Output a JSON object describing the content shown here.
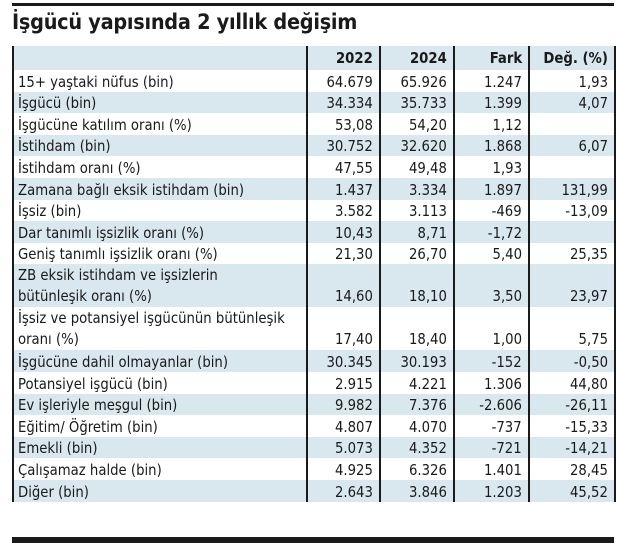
{
  "title": "İşgücü yapısında 2 yıllık değişim",
  "colors": {
    "row_alt": "#d9e7ef",
    "border": "#1a1a1a",
    "text": "#1a1a1a"
  },
  "table": {
    "headers": [
      "",
      "2022",
      "2024",
      "Fark",
      "Değ. (%)"
    ],
    "rows": [
      {
        "label": "15+ yaştaki nüfus (bin)",
        "y2022": "64.679",
        "y2024": "65.926",
        "fark": "1.247",
        "deg": "1,93"
      },
      {
        "label": "İşgücü (bin)",
        "y2022": "34.334",
        "y2024": "35.733",
        "fark": "1.399",
        "deg": "4,07"
      },
      {
        "label": "İşgücüne katılım oranı (%)",
        "y2022": "53,08",
        "y2024": "54,20",
        "fark": "1,12",
        "deg": ""
      },
      {
        "label": "İstihdam (bin)",
        "y2022": "30.752",
        "y2024": "32.620",
        "fark": "1.868",
        "deg": "6,07"
      },
      {
        "label": "İstihdam oranı (%)",
        "y2022": "47,55",
        "y2024": "49,48",
        "fark": "1,93",
        "deg": ""
      },
      {
        "label": "Zamana bağlı eksik istihdam  (bin)",
        "y2022": "1.437",
        "y2024": "3.334",
        "fark": "1.897",
        "deg": "131,99"
      },
      {
        "label": "İşsiz (bin)",
        "y2022": "3.582",
        "y2024": "3.113",
        "fark": "-469",
        "deg": "-13,09"
      },
      {
        "label": "Dar tanımlı işsizlik oranı (%)",
        "y2022": "10,43",
        "y2024": "8,71",
        "fark": "-1,72",
        "deg": ""
      },
      {
        "label": "Geniş tanımlı işsizlik oranı (%)",
        "y2022": "21,30",
        "y2024": "26,70",
        "fark": "5,40",
        "deg": "25,35"
      },
      {
        "label": "ZB eksik istihdam ve işsizlerin bütünleşik oranı (%)",
        "y2022": "14,60",
        "y2024": "18,10",
        "fark": "3,50",
        "deg": "23,97"
      },
      {
        "label": "İşsiz ve potansiyel işgücünün bütünleşik oranı (%)",
        "y2022": "17,40",
        "y2024": "18,40",
        "fark": "1,00",
        "deg": "5,75"
      },
      {
        "label": "İşgücüne dahil olmayanlar (bin)",
        "y2022": "30.345",
        "y2024": "30.193",
        "fark": "-152",
        "deg": "-0,50"
      },
      {
        "label": "Potansiyel işgücü (bin)",
        "y2022": "2.915",
        "y2024": "4.221",
        "fark": "1.306",
        "deg": "44,80"
      },
      {
        "label": "Ev işleriyle meşgul (bin)",
        "y2022": "9.982",
        "y2024": "7.376",
        "fark": "-2.606",
        "deg": "-26,11"
      },
      {
        "label": "Eğitim/ Öğretim (bin)",
        "y2022": "4.807",
        "y2024": "4.070",
        "fark": "-737",
        "deg": "-15,33"
      },
      {
        "label": "Emekli (bin)",
        "y2022": "5.073",
        "y2024": "4.352",
        "fark": "-721",
        "deg": "-14,21"
      },
      {
        "label": "Çalışamaz halde (bin)",
        "y2022": "4.925",
        "y2024": "6.326",
        "fark": "1.401",
        "deg": "28,45"
      },
      {
        "label": "Diğer (bin)",
        "y2022": "2.643",
        "y2024": "3.846",
        "fark": "1.203",
        "deg": "45,52"
      }
    ]
  }
}
